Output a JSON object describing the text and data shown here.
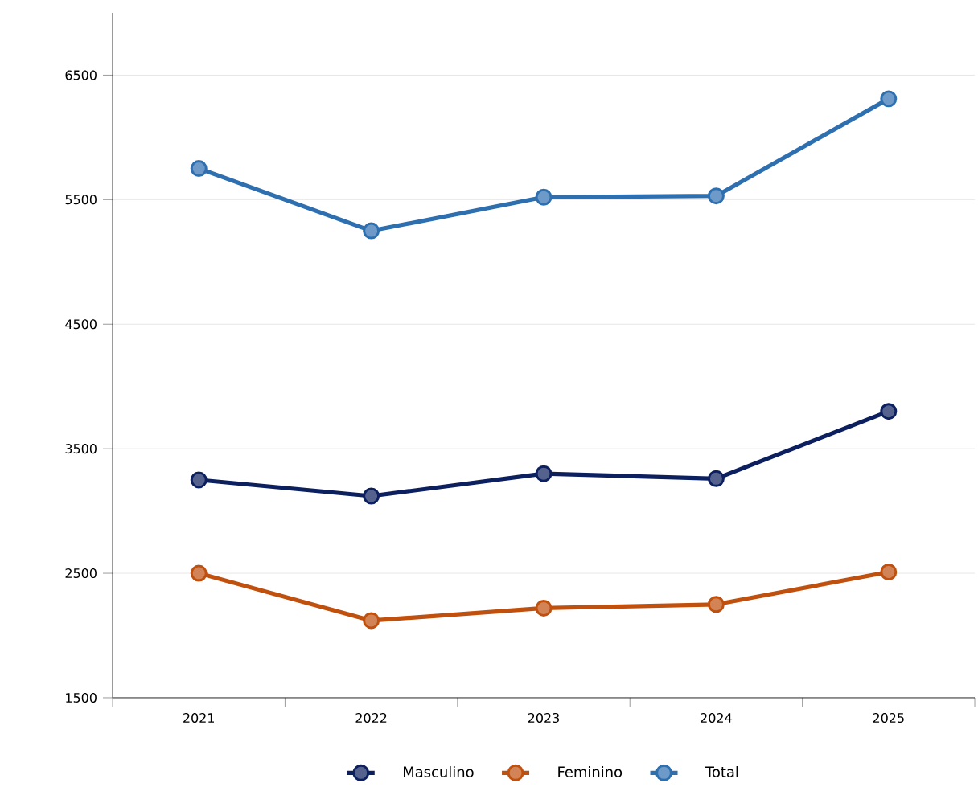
{
  "chart_data": {
    "type": "line",
    "categories": [
      "2021",
      "2022",
      "2023",
      "2024",
      "2025"
    ],
    "series": [
      {
        "name": "Masculino",
        "color": "#0c1f5e",
        "values": [
          3250,
          3120,
          3300,
          3260,
          3800
        ]
      },
      {
        "name": "Feminino",
        "color": "#c0500e",
        "values": [
          2500,
          2120,
          2220,
          2250,
          2510
        ]
      },
      {
        "name": "Total",
        "color": "#2e6fb0",
        "values": [
          5750,
          5250,
          5520,
          5530,
          6310
        ]
      }
    ],
    "ylim": [
      1500,
      7000
    ],
    "yticks": [
      1500,
      2500,
      3500,
      4500,
      5500,
      6500
    ],
    "grid": "y",
    "legend": "bottom",
    "marker": "circle",
    "line_style": "solid"
  }
}
